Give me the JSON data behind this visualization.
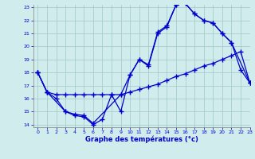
{
  "title": "Graphe des températures (°c)",
  "bg_color": "#d0ecec",
  "grid_color": "#a0c8c8",
  "line_color": "#0000cc",
  "xlim": [
    -0.5,
    23
  ],
  "ylim": [
    13.8,
    23.2
  ],
  "yticks": [
    14,
    15,
    16,
    17,
    18,
    19,
    20,
    21,
    22,
    23
  ],
  "xticks": [
    0,
    1,
    2,
    3,
    4,
    5,
    6,
    7,
    8,
    9,
    10,
    11,
    12,
    13,
    14,
    15,
    16,
    17,
    18,
    19,
    20,
    21,
    22,
    23
  ],
  "line1_x": [
    0,
    1,
    2,
    3,
    4,
    5,
    6,
    7,
    8,
    9,
    10,
    11,
    12,
    13,
    14,
    15,
    16,
    17,
    18,
    19,
    20,
    21,
    22,
    23
  ],
  "line1_y": [
    18.0,
    16.5,
    16.0,
    15.0,
    14.7,
    14.6,
    14.0,
    14.4,
    16.3,
    15.0,
    17.8,
    19.0,
    18.5,
    21.0,
    21.5,
    23.2,
    23.3,
    22.5,
    22.0,
    21.8,
    21.0,
    20.3,
    18.2,
    17.2
  ],
  "line2_x": [
    0,
    1,
    2,
    3,
    4,
    5,
    6,
    7,
    8,
    9,
    10,
    11,
    12,
    13,
    14,
    15,
    16,
    17,
    18,
    19,
    20,
    21,
    22,
    23
  ],
  "line2_y": [
    18.0,
    16.5,
    16.3,
    16.3,
    16.3,
    16.3,
    16.3,
    16.3,
    16.3,
    16.3,
    16.5,
    16.7,
    16.9,
    17.1,
    17.4,
    17.7,
    17.9,
    18.2,
    18.5,
    18.7,
    19.0,
    19.3,
    19.6,
    17.2
  ],
  "line3_x": [
    0,
    1,
    3,
    4,
    5,
    6,
    9,
    10,
    11,
    12,
    13,
    14,
    15,
    16,
    17,
    18,
    19,
    20,
    21,
    23
  ],
  "line3_y": [
    18.0,
    16.5,
    15.0,
    14.8,
    14.7,
    14.1,
    16.3,
    17.8,
    19.0,
    18.6,
    21.1,
    21.6,
    23.2,
    23.3,
    22.5,
    22.0,
    21.8,
    21.0,
    20.3,
    17.2
  ]
}
